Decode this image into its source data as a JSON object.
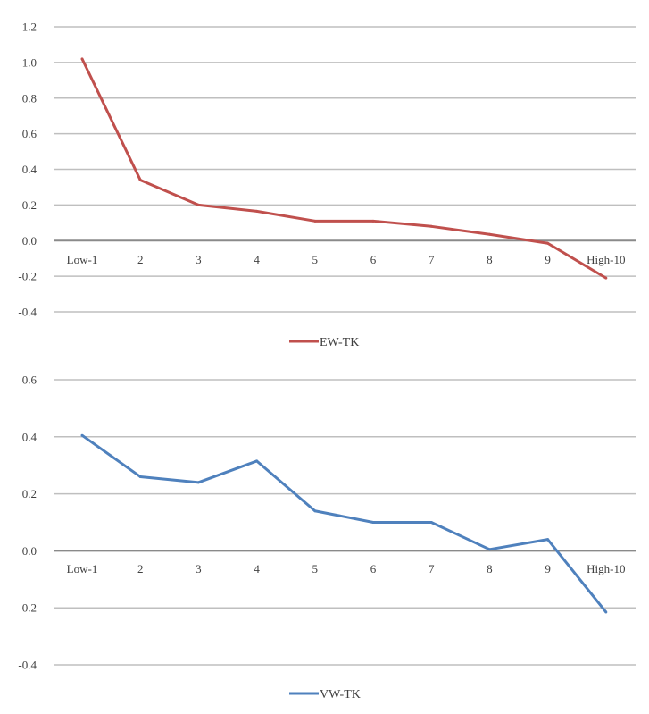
{
  "chart_data": [
    {
      "type": "line",
      "categories": [
        "Low-1",
        "2",
        "3",
        "4",
        "5",
        "6",
        "7",
        "8",
        "9",
        "High-10"
      ],
      "series": [
        {
          "name": "EW-TK",
          "color": "#c0504d",
          "values": [
            1.02,
            0.34,
            0.2,
            0.165,
            0.11,
            0.11,
            0.08,
            0.035,
            -0.015,
            -0.21
          ]
        }
      ],
      "ylim": [
        -0.4,
        1.2
      ],
      "yticks": [
        "1.2",
        "1.0",
        "0.8",
        "0.6",
        "0.4",
        "0.2",
        "0.0",
        "-0.2",
        "-0.4"
      ],
      "grid": true,
      "legend": "bottom"
    },
    {
      "type": "line",
      "categories": [
        "Low-1",
        "2",
        "3",
        "4",
        "5",
        "6",
        "7",
        "8",
        "9",
        "High-10"
      ],
      "series": [
        {
          "name": "VW-TK",
          "color": "#4f81bd",
          "values": [
            0.405,
            0.26,
            0.24,
            0.315,
            0.14,
            0.1,
            0.1,
            0.005,
            0.04,
            -0.215
          ]
        }
      ],
      "ylim": [
        -0.4,
        0.6
      ],
      "yticks": [
        "0.6",
        "0.4",
        "0.2",
        "0.0",
        "-0.2",
        "-0.4"
      ],
      "grid": true,
      "legend": "bottom"
    }
  ]
}
